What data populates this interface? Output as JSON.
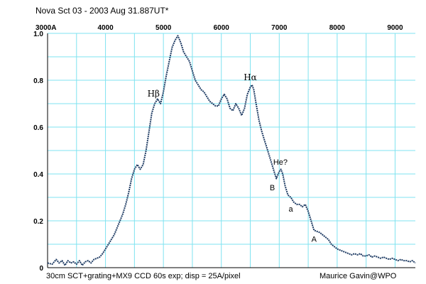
{
  "chart_data": {
    "type": "line",
    "title": "Nova Sct 03 -    2003 Aug  31.887UT*",
    "xlabel": "",
    "ylabel": "",
    "xlim": [
      3000,
      9350
    ],
    "ylim": [
      0,
      1.0
    ],
    "grid": true,
    "x_tick_labels": [
      {
        "value": 3000,
        "label": "3000A"
      },
      {
        "value": 4000,
        "label": "4000"
      },
      {
        "value": 5000,
        "label": "5000"
      },
      {
        "value": 6000,
        "label": "6000"
      },
      {
        "value": 7000,
        "label": "7000"
      },
      {
        "value": 8000,
        "label": "8000"
      },
      {
        "value": 9000,
        "label": "9000"
      }
    ],
    "y_tick_labels": [
      {
        "value": 0,
        "label": "0"
      },
      {
        "value": 0.2,
        "label": "0.2"
      },
      {
        "value": 0.4,
        "label": "0.4"
      },
      {
        "value": 0.6,
        "label": "0.6"
      },
      {
        "value": 0.8,
        "label": "0.8"
      },
      {
        "value": 1.0,
        "label": "1.0"
      }
    ],
    "series": [
      {
        "color": "#1f3c64",
        "points": [
          [
            3000,
            0.02
          ],
          [
            3080,
            0.015
          ],
          [
            3150,
            0.035
          ],
          [
            3200,
            0.02
          ],
          [
            3250,
            0.03
          ],
          [
            3300,
            0.01
          ],
          [
            3350,
            0.03
          ],
          [
            3400,
            0.02
          ],
          [
            3450,
            0.025
          ],
          [
            3500,
            0.015
          ],
          [
            3550,
            0.03
          ],
          [
            3600,
            0.01
          ],
          [
            3650,
            0.025
          ],
          [
            3700,
            0.03
          ],
          [
            3750,
            0.02
          ],
          [
            3800,
            0.035
          ],
          [
            3850,
            0.04
          ],
          [
            3900,
            0.045
          ],
          [
            3950,
            0.06
          ],
          [
            4000,
            0.08
          ],
          [
            4050,
            0.1
          ],
          [
            4100,
            0.12
          ],
          [
            4150,
            0.14
          ],
          [
            4200,
            0.17
          ],
          [
            4250,
            0.2
          ],
          [
            4300,
            0.23
          ],
          [
            4350,
            0.27
          ],
          [
            4400,
            0.32
          ],
          [
            4450,
            0.38
          ],
          [
            4500,
            0.42
          ],
          [
            4550,
            0.44
          ],
          [
            4600,
            0.42
          ],
          [
            4650,
            0.44
          ],
          [
            4700,
            0.5
          ],
          [
            4750,
            0.58
          ],
          [
            4800,
            0.66
          ],
          [
            4850,
            0.7
          ],
          [
            4900,
            0.72
          ],
          [
            4950,
            0.7
          ],
          [
            5000,
            0.75
          ],
          [
            5050,
            0.82
          ],
          [
            5100,
            0.88
          ],
          [
            5150,
            0.94
          ],
          [
            5200,
            0.97
          ],
          [
            5250,
            0.99
          ],
          [
            5300,
            0.96
          ],
          [
            5350,
            0.92
          ],
          [
            5400,
            0.9
          ],
          [
            5450,
            0.88
          ],
          [
            5500,
            0.84
          ],
          [
            5550,
            0.8
          ],
          [
            5600,
            0.78
          ],
          [
            5650,
            0.76
          ],
          [
            5700,
            0.75
          ],
          [
            5750,
            0.73
          ],
          [
            5800,
            0.71
          ],
          [
            5850,
            0.7
          ],
          [
            5900,
            0.69
          ],
          [
            5950,
            0.69
          ],
          [
            6000,
            0.72
          ],
          [
            6050,
            0.74
          ],
          [
            6100,
            0.72
          ],
          [
            6150,
            0.68
          ],
          [
            6200,
            0.67
          ],
          [
            6250,
            0.7
          ],
          [
            6300,
            0.68
          ],
          [
            6350,
            0.65
          ],
          [
            6400,
            0.68
          ],
          [
            6450,
            0.74
          ],
          [
            6500,
            0.77
          ],
          [
            6530,
            0.78
          ],
          [
            6560,
            0.76
          ],
          [
            6600,
            0.7
          ],
          [
            6650,
            0.63
          ],
          [
            6700,
            0.58
          ],
          [
            6750,
            0.54
          ],
          [
            6800,
            0.5
          ],
          [
            6850,
            0.46
          ],
          [
            6900,
            0.42
          ],
          [
            6950,
            0.38
          ],
          [
            7000,
            0.41
          ],
          [
            7030,
            0.42
          ],
          [
            7060,
            0.4
          ],
          [
            7100,
            0.35
          ],
          [
            7150,
            0.31
          ],
          [
            7200,
            0.3
          ],
          [
            7250,
            0.28
          ],
          [
            7300,
            0.27
          ],
          [
            7350,
            0.27
          ],
          [
            7400,
            0.26
          ],
          [
            7450,
            0.27
          ],
          [
            7500,
            0.24
          ],
          [
            7550,
            0.2
          ],
          [
            7600,
            0.16
          ],
          [
            7650,
            0.155
          ],
          [
            7700,
            0.15
          ],
          [
            7750,
            0.14
          ],
          [
            7800,
            0.13
          ],
          [
            7850,
            0.12
          ],
          [
            7900,
            0.1
          ],
          [
            7950,
            0.09
          ],
          [
            8000,
            0.08
          ],
          [
            8050,
            0.075
          ],
          [
            8100,
            0.07
          ],
          [
            8150,
            0.065
          ],
          [
            8200,
            0.06
          ],
          [
            8250,
            0.055
          ],
          [
            8300,
            0.06
          ],
          [
            8350,
            0.055
          ],
          [
            8400,
            0.06
          ],
          [
            8450,
            0.05
          ],
          [
            8500,
            0.05
          ],
          [
            8550,
            0.055
          ],
          [
            8600,
            0.045
          ],
          [
            8650,
            0.05
          ],
          [
            8700,
            0.045
          ],
          [
            8750,
            0.04
          ],
          [
            8800,
            0.045
          ],
          [
            8850,
            0.04
          ],
          [
            8900,
            0.035
          ],
          [
            8950,
            0.04
          ],
          [
            9000,
            0.035
          ],
          [
            9050,
            0.03
          ],
          [
            9100,
            0.035
          ],
          [
            9150,
            0.03
          ],
          [
            9200,
            0.03
          ],
          [
            9250,
            0.025
          ],
          [
            9300,
            0.03
          ],
          [
            9350,
            0.02
          ]
        ]
      }
    ],
    "annotations": [
      {
        "id": "hbeta",
        "text": "Hβ",
        "x": 4830,
        "y": 0.73
      },
      {
        "id": "halpha",
        "text": "Hα",
        "x": 6500,
        "y": 0.8
      },
      {
        "id": "he",
        "text": "He?",
        "x": 7020,
        "y": 0.44
      },
      {
        "id": "B",
        "text": "B",
        "x": 6880,
        "y": 0.33
      },
      {
        "id": "a",
        "text": "a",
        "x": 7200,
        "y": 0.24
      },
      {
        "id": "A",
        "text": "A",
        "x": 7600,
        "y": 0.11
      }
    ],
    "footer_left": "30cm SCT+grating+MX9 CCD 60s exp;  disp = 25A/pixel",
    "footer_right": "Maurice Gavin@WPO"
  },
  "colors": {
    "grid": "#7fe3f0",
    "axis": "#000000",
    "line": "#1f3c64"
  }
}
